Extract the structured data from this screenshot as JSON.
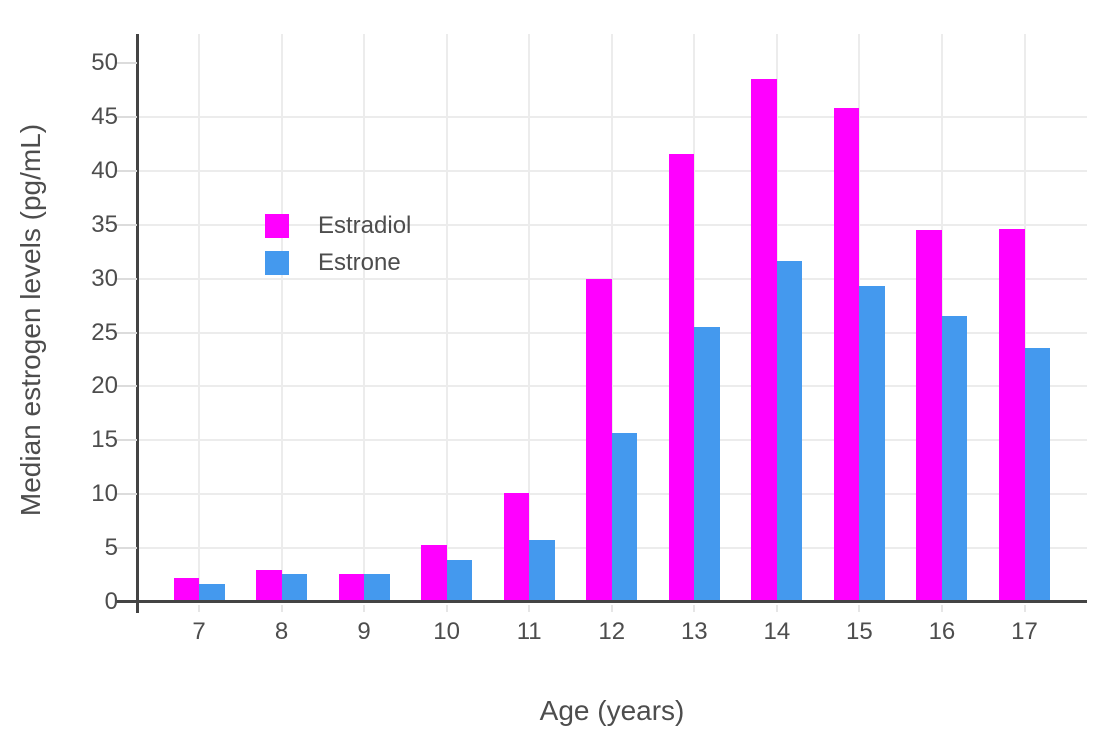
{
  "chart_data": {
    "type": "bar",
    "title": "",
    "xlabel": "Age (years)",
    "ylabel": "Median estrogen levels (pg/mL)",
    "categories": [
      "7",
      "8",
      "9",
      "10",
      "11",
      "12",
      "13",
      "14",
      "15",
      "16",
      "17"
    ],
    "series": [
      {
        "name": "Estradiol",
        "color": "#FF00FF",
        "values": [
          2.2,
          3.0,
          2.6,
          5.3,
          10.1,
          30.0,
          41.6,
          48.5,
          45.8,
          34.5,
          34.6
        ]
      },
      {
        "name": "Estrone",
        "color": "#4499EE",
        "values": [
          1.7,
          2.6,
          2.6,
          3.9,
          5.8,
          15.7,
          25.5,
          31.6,
          29.3,
          26.5,
          23.6
        ]
      }
    ],
    "ylim": [
      0,
      52.7
    ],
    "ytick_step": 5,
    "ytick_labels": [
      "0",
      "5",
      "10",
      "15",
      "20",
      "25",
      "30",
      "35",
      "40",
      "45",
      "50"
    ],
    "grid": true,
    "legend_position": "inside top-left",
    "colors": {
      "background": "#FFFFFF",
      "axis_line": "#444444",
      "grid_line": "#ECECEC",
      "y_tick": "#DCDCDC",
      "x_tick": "#E6E6E6",
      "text": "#4D4D4D"
    }
  }
}
